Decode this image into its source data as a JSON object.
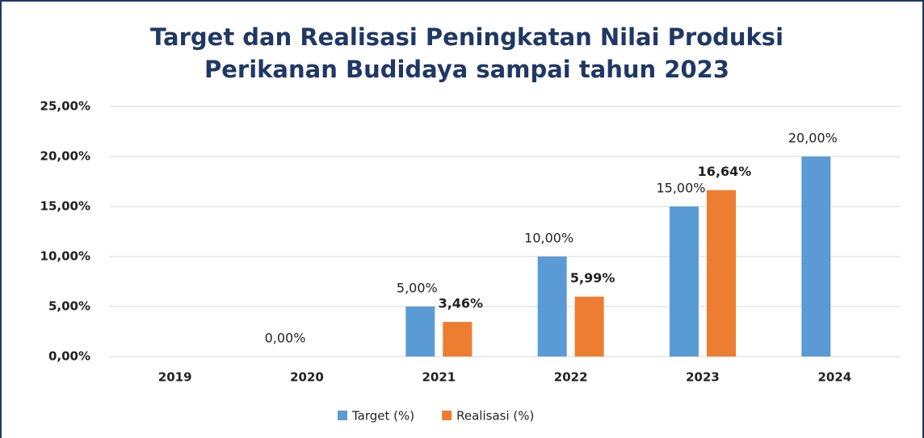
{
  "chart_data": {
    "type": "bar",
    "title": [
      "Target dan Realisasi Peningkatan Nilai Produksi",
      "Perikanan Budidaya sampai tahun 2023"
    ],
    "categories": [
      "2019",
      "2020",
      "2021",
      "2022",
      "2023",
      "2024"
    ],
    "series": [
      {
        "name": "Target (%)",
        "color": "#5b9bd5",
        "values": [
          null,
          0,
          5,
          10,
          15,
          20
        ],
        "value_labels": [
          null,
          "0,00%",
          "5,00%",
          "10,00%",
          "15,00%",
          "20,00%"
        ]
      },
      {
        "name": "Realisasi (%)",
        "color": "#ed7d31",
        "values": [
          null,
          null,
          3.46,
          5.99,
          16.64,
          null
        ],
        "value_labels": [
          null,
          null,
          "3,46%",
          "5,99%",
          "16,64%",
          null
        ]
      }
    ],
    "ylim": [
      0,
      25
    ],
    "yticks": [
      {
        "value": 0,
        "label": "0,00%"
      },
      {
        "value": 5,
        "label": "5,00%"
      },
      {
        "value": 10,
        "label": "10,00%"
      },
      {
        "value": 15,
        "label": "15,00%"
      },
      {
        "value": 20,
        "label": "20,00%"
      },
      {
        "value": 25,
        "label": "25,00%"
      }
    ],
    "grid": true,
    "legend": "bottom"
  }
}
